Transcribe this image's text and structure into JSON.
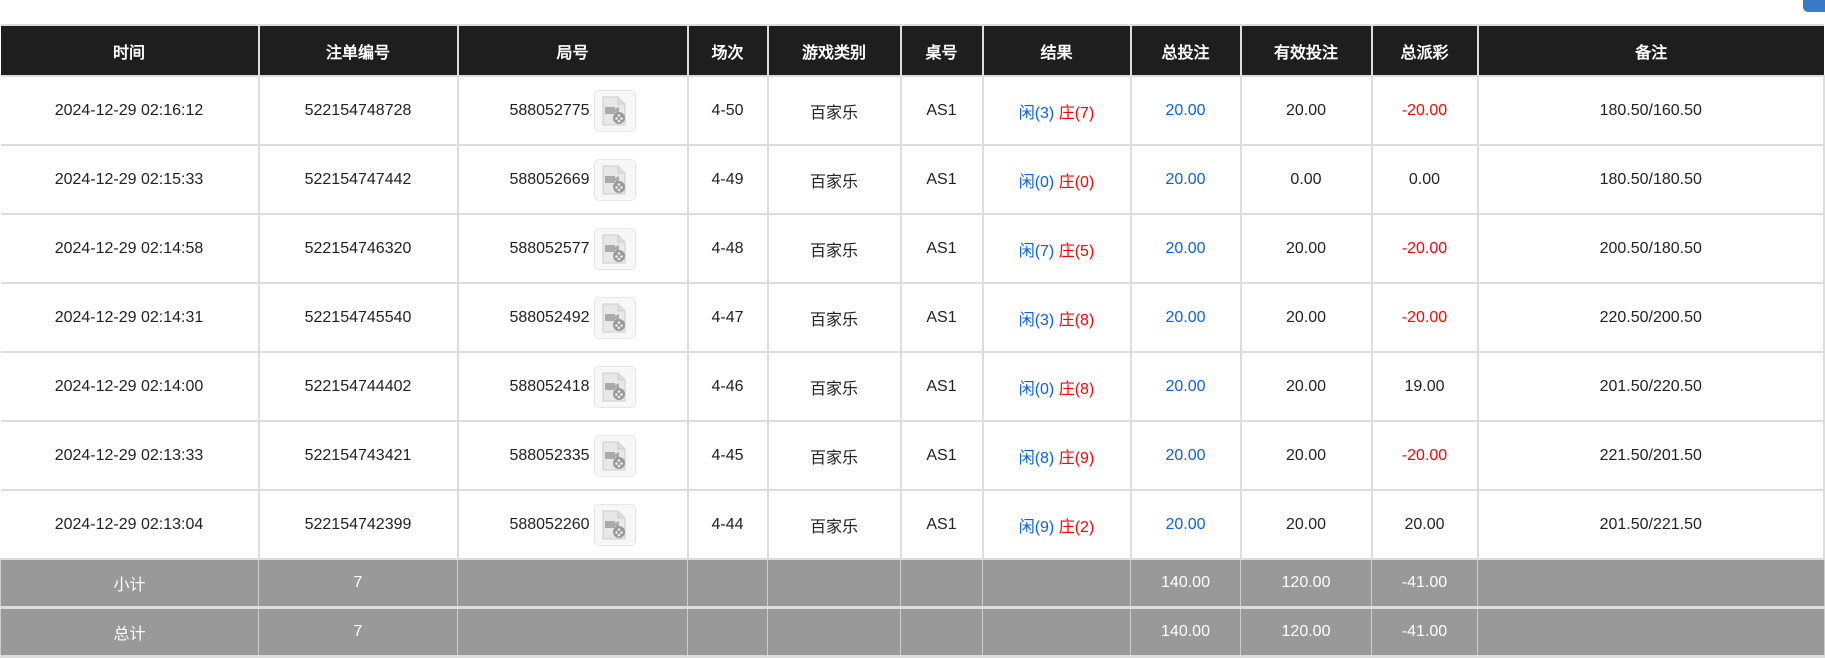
{
  "headers": [
    "时间",
    "注单编号",
    "局号",
    "场次",
    "游戏类别",
    "桌号",
    "结果",
    "总投注",
    "有效投注",
    "总派彩",
    "备注"
  ],
  "rows": [
    {
      "time": "2024-12-29 02:16:12",
      "bet_id": "522154748728",
      "round": "588052775",
      "session": "4-50",
      "game": "百家乐",
      "table": "AS1",
      "player": "闲(3)",
      "banker": "庄(7)",
      "total": "20.00",
      "valid": "20.00",
      "payout": "-20.00",
      "payout_neg": true,
      "note": "180.50/160.50"
    },
    {
      "time": "2024-12-29 02:15:33",
      "bet_id": "522154747442",
      "round": "588052669",
      "session": "4-49",
      "game": "百家乐",
      "table": "AS1",
      "player": "闲(0)",
      "banker": "庄(0)",
      "total": "20.00",
      "valid": "0.00",
      "payout": "0.00",
      "payout_neg": false,
      "note": "180.50/180.50"
    },
    {
      "time": "2024-12-29 02:14:58",
      "bet_id": "522154746320",
      "round": "588052577",
      "session": "4-48",
      "game": "百家乐",
      "table": "AS1",
      "player": "闲(7)",
      "banker": "庄(5)",
      "total": "20.00",
      "valid": "20.00",
      "payout": "-20.00",
      "payout_neg": true,
      "note": "200.50/180.50"
    },
    {
      "time": "2024-12-29 02:14:31",
      "bet_id": "522154745540",
      "round": "588052492",
      "session": "4-47",
      "game": "百家乐",
      "table": "AS1",
      "player": "闲(3)",
      "banker": "庄(8)",
      "total": "20.00",
      "valid": "20.00",
      "payout": "-20.00",
      "payout_neg": true,
      "note": "220.50/200.50"
    },
    {
      "time": "2024-12-29 02:14:00",
      "bet_id": "522154744402",
      "round": "588052418",
      "session": "4-46",
      "game": "百家乐",
      "table": "AS1",
      "player": "闲(0)",
      "banker": "庄(8)",
      "total": "20.00",
      "valid": "20.00",
      "payout": "19.00",
      "payout_neg": false,
      "note": "201.50/220.50"
    },
    {
      "time": "2024-12-29 02:13:33",
      "bet_id": "522154743421",
      "round": "588052335",
      "session": "4-45",
      "game": "百家乐",
      "table": "AS1",
      "player": "闲(8)",
      "banker": "庄(9)",
      "total": "20.00",
      "valid": "20.00",
      "payout": "-20.00",
      "payout_neg": true,
      "note": "221.50/201.50"
    },
    {
      "time": "2024-12-29 02:13:04",
      "bet_id": "522154742399",
      "round": "588052260",
      "session": "4-44",
      "game": "百家乐",
      "table": "AS1",
      "player": "闲(9)",
      "banker": "庄(2)",
      "total": "20.00",
      "valid": "20.00",
      "payout": "20.00",
      "payout_neg": false,
      "note": "201.50/221.50"
    }
  ],
  "summary": [
    {
      "label": "小计",
      "count": "7",
      "total": "140.00",
      "valid": "120.00",
      "payout": "-41.00"
    },
    {
      "label": "总计",
      "count": "7",
      "total": "140.00",
      "valid": "120.00",
      "payout": "-41.00"
    }
  ],
  "colors": {
    "header_bg": "#1e1e1e",
    "player": "#0a5ef0",
    "negative": "#ff0000",
    "summary_bg": "#999999"
  },
  "icons": {
    "round_replay": "video-file-icon"
  }
}
